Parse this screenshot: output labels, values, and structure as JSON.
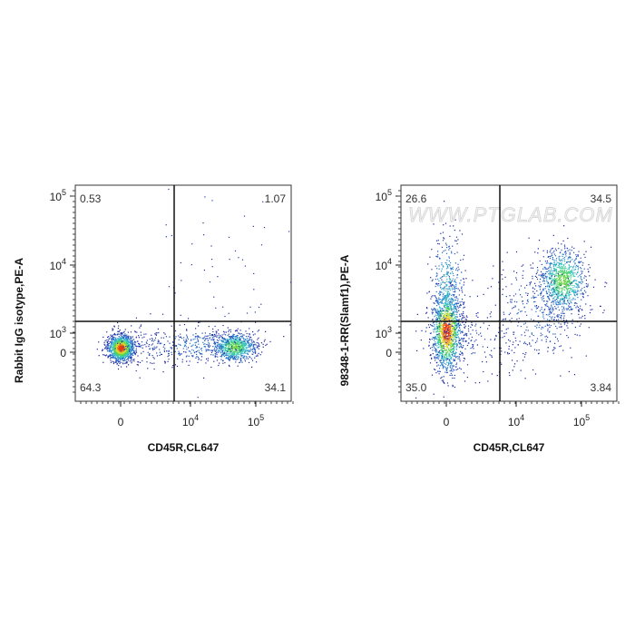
{
  "chart_data": [
    {
      "type": "scatter",
      "subtype": "flow-cytometry density dot plot",
      "xlabel": "CD45R,CL647",
      "ylabel": "Rabbit IgG isotype,PE-A",
      "x_scale": "biexponential",
      "y_scale": "biexponential",
      "x_ticks": [
        {
          "base": "0",
          "exp": ""
        },
        {
          "base": "10",
          "exp": "4"
        },
        {
          "base": "10",
          "exp": "5"
        }
      ],
      "y_ticks": [
        {
          "base": "0",
          "exp": ""
        },
        {
          "base": "10",
          "exp": "3"
        },
        {
          "base": "10",
          "exp": "4"
        },
        {
          "base": "10",
          "exp": "5"
        }
      ],
      "quadrants": {
        "upper_left": "0.53",
        "upper_right": "1.07",
        "lower_left": "64.3",
        "lower_right": "34.1"
      },
      "color_scale": [
        "#1c1c9c",
        "#2a7fd0",
        "#35c8c0",
        "#52d24a",
        "#e8e030",
        "#e83a10"
      ],
      "watermark": ""
    },
    {
      "type": "scatter",
      "subtype": "flow-cytometry density dot plot",
      "xlabel": "CD45R,CL647",
      "ylabel": "98348-1-RR(Slamf1),PE-A",
      "x_scale": "biexponential",
      "y_scale": "biexponential",
      "x_ticks": [
        {
          "base": "0",
          "exp": ""
        },
        {
          "base": "10",
          "exp": "4"
        },
        {
          "base": "10",
          "exp": "5"
        }
      ],
      "y_ticks": [
        {
          "base": "0",
          "exp": ""
        },
        {
          "base": "10",
          "exp": "3"
        },
        {
          "base": "10",
          "exp": "4"
        },
        {
          "base": "10",
          "exp": "5"
        }
      ],
      "quadrants": {
        "upper_left": "26.6",
        "upper_right": "34.5",
        "lower_left": "35.0",
        "lower_right": "3.84"
      },
      "color_scale": [
        "#1c1c9c",
        "#2a7fd0",
        "#35c8c0",
        "#52d24a",
        "#e8e030",
        "#e83a10"
      ],
      "watermark": "WWW.PTGLAB.COM"
    }
  ]
}
